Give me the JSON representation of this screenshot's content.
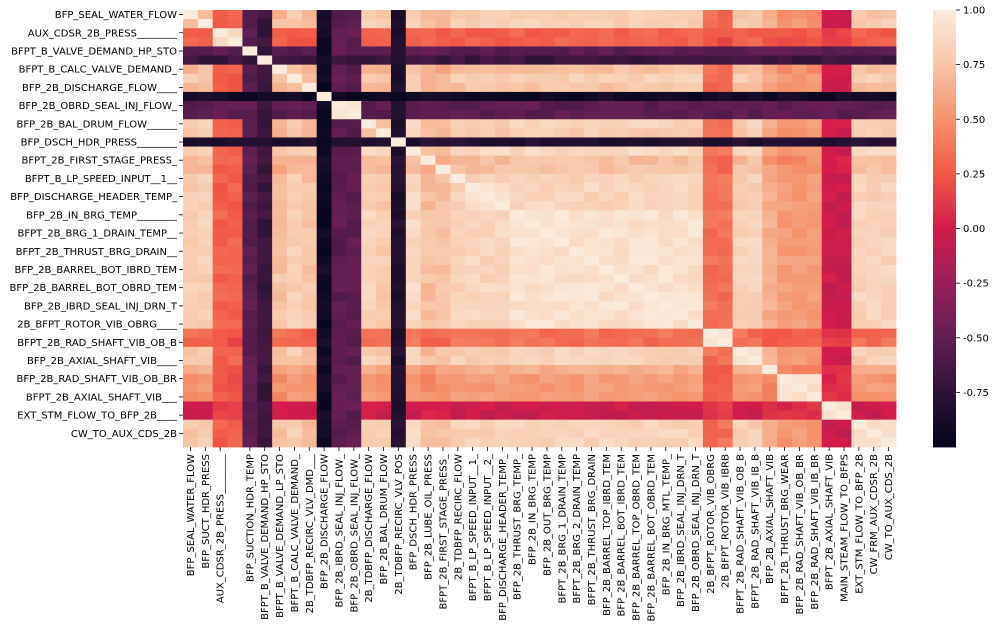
{
  "chart_data": {
    "type": "heatmap",
    "title": "",
    "xlabel": "",
    "ylabel": "",
    "colorbar": {
      "range": [
        -1.0,
        1.0
      ],
      "ticks": [
        "1.00",
        "0.75",
        "0.50",
        "0.25",
        "0.00",
        "-0.25",
        "-0.50",
        "-0.75"
      ],
      "tick_values": [
        1.0,
        0.75,
        0.5,
        0.25,
        0.0,
        -0.25,
        -0.5,
        -0.75
      ],
      "colormap": "rocket"
    },
    "variables": [
      "BFP_SEAL_WATER_FLOW",
      "BFP_SUCT_HDR_PRESS",
      "AUX_CDSR_2B_PRESS________",
      "AUX_CDSR_2B_PRESS",
      "BFP_SUCTION_HDR_TEMP",
      "BFPT_B_VALVE_DEMAND_HP_STO",
      "BFPT_B_VALVE_DEMAND_LP_STO",
      "BFPT_B_CALC_VALVE_DEMAND_",
      "2B_TDBFP_RECIRC_VLV_DMD___",
      "BFP_2B_DISCHARGE_FLOW",
      "BFP_2B_IBRD_SEAL_INJ_FLOW_",
      "BFP_2B_OBRD_SEAL_INJ_FLOW_",
      "2B_TDBFP_DISCHARGE_FLOW",
      "BFP_2B_BAL_DRUM_FLOW",
      "2B_TDBFP_RECIRC_VLV_POS",
      "BFP_DSCH_HDR_PRESS",
      "BFP_2B_LUBE_OIL_PRESS",
      "BFPT_2B_FIRST_STAGE_PRESS_",
      "2B_TDBFP_RECIRC_FLOW",
      "BFPT_B_LP_SPEED_INPUT__1_",
      "BFPT_B_LP_SPEED_INPUT__2_",
      "BFP_DISCHARGE_HEADER_TEMP_",
      "BFP_2B_THRUST_BRG_TEMP_",
      "BFP_2B_IN_BRG_TEMP",
      "BFP_2B_OUT_BRG_TEMP",
      "BFPT_2B_BRG_1_DRAIN_TEMP",
      "BFPT_2B_BRG_2_DRAIN_TEMP",
      "BFPT_2B_THRUST_BRG_DRAIN",
      "BFP_2B_BARREL_TOP_IBRD_TEM",
      "BFP_2B_BARREL_BOT_IBRD_TEM",
      "BFP_2B_BARREL_TOP_OBRD_TEM",
      "BFP_2B_BARREL_BOT_OBRD_TEM",
      "BFP_2B_IN_BRG_MTL_TEMP_",
      "BFP_2B_IBRD_SEAL_INJ_DRN_T",
      "BFP_2B_OBRD_SEAL_INJ_DRN_T",
      "2B_BFPT_ROTOR_VIB_OBRG",
      "2B_BFPT_ROTOR_VIB_IBRB",
      "BFPT_2B_RAD_SHAFT_VIB_OB_B",
      "BFPT_2B_RAD_SHAFT_VIB_IB_B",
      "BFP_2B_AXIAL_SHAFT_VIB",
      "BFPT_2B_THRUST_BRG_WEAR",
      "BFP_2B_RAD_SHAFT_VIB_OB_BR",
      "BFP_2B_RAD_SHAFT_VIB_IB_BR",
      "BFPT_2B_AXIAL_SHAFT_VIB",
      "MAIN_STEAM_FLOW_TO_BFPS",
      "EXT_STM_FLOW_TO_BFP_2B",
      "CW_FRM_AUX_CDSR_2B",
      "CW_TO_AUX_CDS_2B"
    ],
    "y_tick_labels": [
      "BFP_SEAL_WATER_FLOW",
      "AUX_CDSR_2B_PRESS________",
      "BFPT_B_VALVE_DEMAND_HP_STO",
      "BFPT_B_CALC_VALVE_DEMAND_",
      "BFP_2B_DISCHARGE_FLOW____",
      "BFP_2B_OBRD_SEAL_INJ_FLOW_",
      "BFP_2B_BAL_DRUM_FLOW______",
      "BFP_DSCH_HDR_PRESS________",
      "BFPT_2B_FIRST_STAGE_PRESS_",
      "BFPT_B_LP_SPEED_INPUT__1__",
      "BFP_DISCHARGE_HEADER_TEMP_",
      "BFP_2B_IN_BRG_TEMP________",
      "BFPT_2B_BRG_1_DRAIN_TEMP__",
      "BFPT_2B_THRUST_BRG_DRAIN__",
      "BFP_2B_BARREL_BOT_IBRD_TEM",
      "BFP_2B_BARREL_BOT_OBRD_TEM",
      "BFP_2B_IBRD_SEAL_INJ_DRN_T",
      "2B_BFPT_ROTOR_VIB_OBRG____",
      "BFPT_2B_RAD_SHAFT_VIB_OB_B",
      "BFP_2B_AXIAL_SHAFT_VIB____",
      "BFP_2B_RAD_SHAFT_VIB_OB_BR",
      "BFPT_2B_AXIAL_SHAFT_VIB___",
      "EXT_STM_FLOW_TO_BFP_2B____",
      "CW_TO_AUX_CDS_2B"
    ],
    "x_tick_labels": [
      "BFP_SEAL_WATER_FLOW",
      "BFP_SUCT_HDR_PRESS",
      "AUX_CDSR_2B_PRESS________",
      "BFP_SUCTION_HDR_TEMP",
      "BFPT_B_VALVE_DEMAND_HP_STO",
      "BFPT_B_VALVE_DEMAND_LP_STO",
      "BFPT_B_CALC_VALVE_DEMAND_",
      "2B_TDBFP_RECIRC_VLV_DMD___",
      "BFP_2B_DISCHARGE_FLOW",
      "BFP_2B_IBRD_SEAL_INJ_FLOW_",
      "BFP_2B_OBRD_SEAL_INJ_FLOW_",
      "2B_TDBFP_DISCHARGE_FLOW",
      "BFP_2B_BAL_DRUM_FLOW",
      "2B_TDBFP_RECIRC_VLV_POS",
      "BFP_DSCH_HDR_PRESS",
      "BFP_2B_LUBE_OIL_PRESS",
      "BFPT_2B_FIRST_STAGE_PRESS_",
      "2B_TDBFP_RECIRC_FLOW",
      "BFPT_B_LP_SPEED_INPUT__1_",
      "BFPT_B_LP_SPEED_INPUT__2_",
      "BFP_DISCHARGE_HEADER_TEMP_",
      "BFP_2B_THRUST_BRG_TEMP_",
      "BFP_2B_IN_BRG_TEMP",
      "BFP_2B_OUT_BRG_TEMP",
      "BFPT_2B_BRG_1_DRAIN_TEMP",
      "BFPT_2B_BRG_2_DRAIN_TEMP",
      "BFPT_2B_THRUST_BRG_DRAIN",
      "BFP_2B_BARREL_TOP_IBRD_TEM",
      "BFP_2B_BARREL_BOT_IBRD_TEM",
      "BFP_2B_BARREL_TOP_OBRD_TEM",
      "BFP_2B_BARREL_BOT_OBRD_TEM",
      "BFP_2B_IN_BRG_MTL_TEMP_",
      "BFP_2B_IBRD_SEAL_INJ_DRN_T",
      "BFP_2B_OBRD_SEAL_INJ_DRN_T",
      "2B_BFPT_ROTOR_VIB_OBRG",
      "2B_BFPT_ROTOR_VIB_IBRB",
      "BFPT_2B_RAD_SHAFT_VIB_OB_B",
      "BFPT_2B_RAD_SHAFT_VIB_IB_B",
      "BFP_2B_AXIAL_SHAFT_VIB",
      "BFPT_2B_THRUST_BRG_WEAR",
      "BFP_2B_RAD_SHAFT_VIB_OB_BR",
      "BFP_2B_RAD_SHAFT_VIB_IB_BR",
      "BFPT_2B_AXIAL_SHAFT_VIB",
      "MAIN_STEAM_FLOW_TO_BFPS",
      "EXT_STM_FLOW_TO_BFP_2B",
      "CW_FRM_AUX_CDSR_2B",
      "CW_TO_AUX_CDS_2B"
    ],
    "group_values": [
      0.62,
      0.66,
      0.02,
      -0.55,
      -0.72,
      0.5,
      0.66,
      0.54,
      -0.96,
      -0.55,
      0.7,
      0.62,
      -0.86,
      0.78,
      0.48,
      0.5,
      0.7,
      0.74,
      0.76,
      0.05,
      0.7,
      0.34,
      0.22,
      -0.08,
      0.7
    ],
    "group_assignment": [
      0,
      1,
      2,
      2,
      3,
      4,
      5,
      6,
      7,
      8,
      9,
      9,
      10,
      11,
      12,
      13,
      14,
      15,
      16,
      17,
      17,
      17,
      18,
      18,
      18,
      18,
      18,
      18,
      18,
      18,
      18,
      18,
      18,
      18,
      18,
      19,
      19,
      20,
      20,
      21,
      22,
      22,
      22,
      23,
      23,
      24,
      24,
      24
    ]
  }
}
